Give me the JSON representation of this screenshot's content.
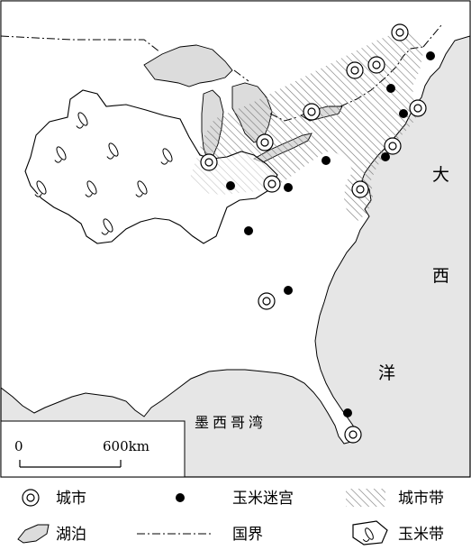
{
  "map": {
    "labels": {
      "ocean_char_1": "大",
      "ocean_char_2": "西",
      "ocean_char_3": "洋",
      "gulf": "墨西哥湾"
    },
    "scale_bar": {
      "start": "0",
      "end": "600km"
    },
    "legend": {
      "city": "城市",
      "corn_maze": "玉米迷宫",
      "urban_belt": "城市带",
      "lake": "湖泊",
      "border": "国界",
      "corn_belt": "玉米带"
    },
    "colors": {
      "sea": "#e6e6e6",
      "land": "#ffffff",
      "stroke": "#000000",
      "lake": "#dcdcdc"
    },
    "cities_count_note": ""
  }
}
